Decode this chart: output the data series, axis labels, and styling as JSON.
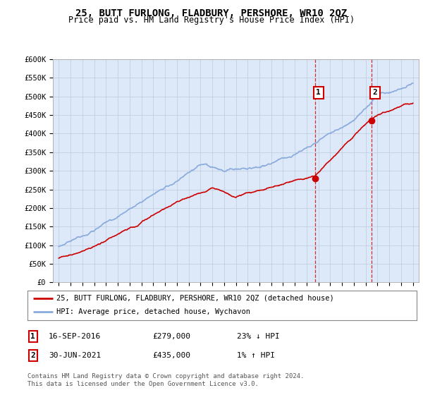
{
  "title": "25, BUTT FURLONG, FLADBURY, PERSHORE, WR10 2QZ",
  "subtitle": "Price paid vs. HM Land Registry's House Price Index (HPI)",
  "ylim": [
    0,
    600000
  ],
  "yticks": [
    0,
    50000,
    100000,
    150000,
    200000,
    250000,
    300000,
    350000,
    400000,
    450000,
    500000,
    550000,
    600000
  ],
  "ytick_labels": [
    "£0",
    "£50K",
    "£100K",
    "£150K",
    "£200K",
    "£250K",
    "£300K",
    "£350K",
    "£400K",
    "£450K",
    "£500K",
    "£550K",
    "£600K"
  ],
  "sale1_date": 2016.71,
  "sale1_price": 279000,
  "sale2_date": 2021.49,
  "sale2_price": 435000,
  "sale1_hpi": 360000,
  "sale2_hpi": 430000,
  "sale1_text": "16-SEP-2016",
  "sale1_value": "£279,000",
  "sale1_pct": "23% ↓ HPI",
  "sale2_text": "30-JUN-2021",
  "sale2_value": "£435,000",
  "sale2_pct": "1% ↑ HPI",
  "house_color": "#cc0000",
  "hpi_color": "#88aadd",
  "vline_color": "#cc0000",
  "legend_house": "25, BUTT FURLONG, FLADBURY, PERSHORE, WR10 2QZ (detached house)",
  "legend_hpi": "HPI: Average price, detached house, Wychavon",
  "footer": "Contains HM Land Registry data © Crown copyright and database right 2024.\nThis data is licensed under the Open Government Licence v3.0.",
  "plot_bg": "#dde8f8",
  "grid_color": "#bbccdd",
  "title_fontsize": 10,
  "subtitle_fontsize": 8.5,
  "tick_fontsize": 7.5
}
